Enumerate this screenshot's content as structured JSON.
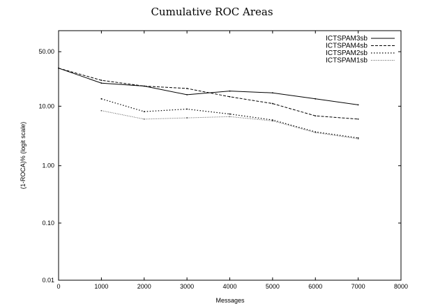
{
  "chart_data": {
    "type": "line",
    "title": "Cumulative ROC Areas",
    "xlabel": "Messages",
    "ylabel": "(1-ROCA)%  (logit scale)",
    "xlim": [
      0,
      8000
    ],
    "ylim": [
      0.01,
      100
    ],
    "y_scale": "logit",
    "x_ticks": [
      0,
      1000,
      2000,
      3000,
      4000,
      5000,
      6000,
      7000,
      8000
    ],
    "x_tick_labels": [
      "0",
      "1000",
      "2000",
      "3000",
      "4000",
      "5000",
      "6000",
      "7000",
      "8000"
    ],
    "y_ticks": [
      0.01,
      0.1,
      1,
      10,
      50
    ],
    "y_tick_labels": [
      "0.01",
      "0.10",
      "1.00",
      "10.00",
      "50.00"
    ],
    "grid": false,
    "legend_position": "top-right",
    "series": [
      {
        "name": "ICTSPAM3sb",
        "style": "solid",
        "x": [
          0,
          1000,
          2000,
          3000,
          4000,
          5000,
          6000,
          7000
        ],
        "y": [
          34,
          22,
          20,
          15,
          17,
          16,
          13,
          10.5
        ]
      },
      {
        "name": "ICTSPAM4sb",
        "style": "dashed",
        "x": [
          0,
          1000,
          2000,
          3000,
          4000,
          5000,
          6000,
          7000
        ],
        "y": [
          34,
          24,
          20,
          18.5,
          14,
          11,
          7,
          6.2
        ]
      },
      {
        "name": "ICTSPAM2sb",
        "style": "dotted",
        "x": [
          1000,
          2000,
          3000,
          4000,
          5000,
          6000,
          7000
        ],
        "y": [
          13,
          8.2,
          9,
          7.5,
          6,
          3.8,
          3
        ]
      },
      {
        "name": "ICTSPAM1sb",
        "style": "light-dotted",
        "x": [
          1000,
          2000,
          3000,
          4000,
          5000,
          6000,
          7000
        ],
        "y": [
          8.5,
          6.2,
          6.5,
          6.8,
          5.8,
          3.7,
          2.9
        ]
      }
    ]
  }
}
